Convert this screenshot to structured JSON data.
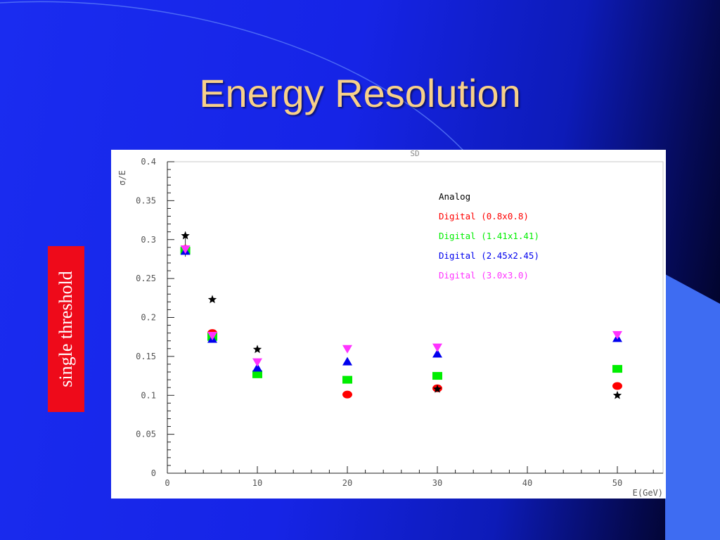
{
  "slide": {
    "title": "Energy Resolution",
    "side_label": "single threshold"
  },
  "colors": {
    "title": "#f7d08a",
    "side_label_bg": "#ee0a1a",
    "deco_blue": "#3e6cf2"
  },
  "chart_data": {
    "type": "scatter",
    "title": "SD",
    "xlabel": "E(GeV)",
    "ylabel": "σ/E",
    "xlim": [
      0,
      55
    ],
    "ylim": [
      0,
      0.4
    ],
    "x_ticks": [
      0,
      10,
      20,
      30,
      40,
      50
    ],
    "y_ticks": [
      0,
      0.05,
      0.1,
      0.15,
      0.2,
      0.25,
      0.3,
      0.35,
      0.4
    ],
    "y_tick_labels": [
      "0",
      "0.05",
      "0.1",
      "0.15",
      "0.2",
      "0.25",
      "0.3",
      "0.35",
      "0.4"
    ],
    "grid": false,
    "legend_position": "top-right",
    "series": [
      {
        "name": "Analog",
        "color": "#000000",
        "marker": "star",
        "x": [
          2,
          5,
          10,
          20,
          30,
          50
        ],
        "y": [
          0.305,
          0.223,
          0.159,
          null,
          0.108,
          0.1
        ]
      },
      {
        "name": "Digital (0.8x0.8)",
        "color": "#ff0000",
        "marker": "circle",
        "x": [
          2,
          5,
          10,
          20,
          30,
          50
        ],
        "y": [
          0.288,
          0.18,
          null,
          0.101,
          0.109,
          0.112
        ]
      },
      {
        "name": "Digital (1.41x1.41)",
        "color": "#00ee00",
        "marker": "square",
        "x": [
          2,
          5,
          10,
          20,
          30,
          50
        ],
        "y": [
          0.286,
          0.175,
          0.127,
          0.12,
          0.125,
          0.134
        ]
      },
      {
        "name": "Digital (2.45x2.45)",
        "color": "#0000ee",
        "marker": "triangle-up",
        "x": [
          2,
          5,
          10,
          20,
          30,
          50
        ],
        "y": [
          0.285,
          0.172,
          0.135,
          0.143,
          0.153,
          0.173
        ]
      },
      {
        "name": "Digital (3.0x3.0)",
        "color": "#ff33ff",
        "marker": "triangle-down",
        "x": [
          2,
          5,
          10,
          20,
          30,
          50
        ],
        "y": [
          0.288,
          0.177,
          0.143,
          0.16,
          0.162,
          0.178
        ]
      }
    ]
  }
}
